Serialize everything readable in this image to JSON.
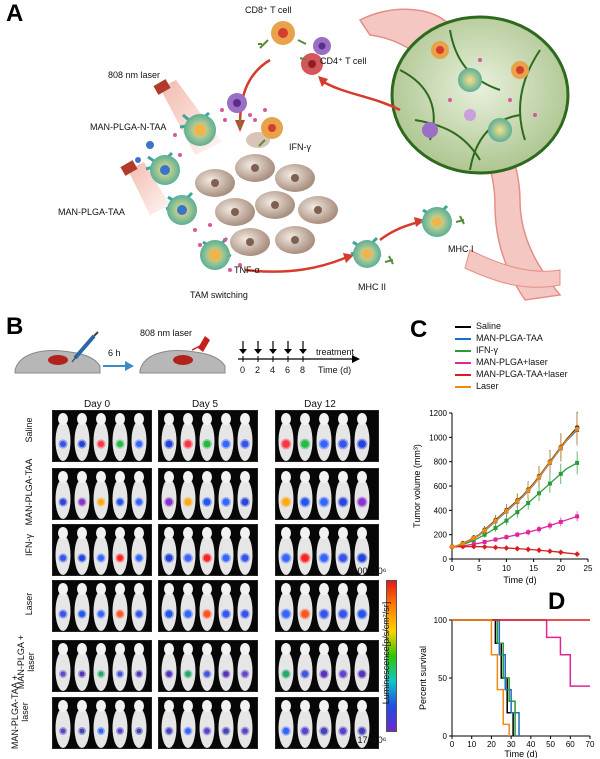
{
  "panel_a": {
    "letter": "A",
    "labels": {
      "cd8": "CD8⁺ T cell",
      "cd4": "CD4⁺ T cell",
      "laser": "808 nm laser",
      "man_plga_n_taa": "MAN-PLGA-N-TAA",
      "man_plga_taa": "MAN-PLGA-TAA",
      "ifn": "IFN-γ",
      "tnf": "TNF-α",
      "tam": "TAM switching",
      "mhc2": "MHC II",
      "mhc1": "MHC I"
    }
  },
  "panel_b": {
    "letter": "B",
    "time_label": "6 h",
    "laser_label": "808 nm laser",
    "timeline": {
      "ticks": [
        "0",
        "2",
        "4",
        "6",
        "8"
      ],
      "treatment": "treatment",
      "time_unit": "Time (d)"
    },
    "days": [
      "Day 0",
      "Day 5",
      "Day 12"
    ],
    "groups": [
      "Saline",
      "MAN-PLGA-TAA",
      "IFN-γ",
      "Laser",
      "MAN-PLGA + laser",
      "MAN-PLGA-TAA + laser"
    ],
    "colorbar": {
      "max": "6.00×10⁶",
      "min": "2.17×10⁶",
      "label": "Luminescence[p/s/cm²/sr]"
    }
  },
  "chart_data": [
    {
      "panel": "C",
      "type": "line",
      "xlabel": "Time (d)",
      "ylabel": "Tumor volume (mm³)",
      "xlim": [
        0,
        25
      ],
      "ylim": [
        0,
        1200
      ],
      "xticks": [
        0,
        5,
        10,
        15,
        20,
        25
      ],
      "yticks": [
        0,
        200,
        400,
        600,
        800,
        1000,
        1200
      ],
      "legend_position": "top-left",
      "x": [
        0,
        1,
        2,
        3,
        4,
        5,
        6,
        7,
        8,
        9,
        10,
        11,
        12,
        13,
        14,
        15,
        16,
        17,
        18,
        19,
        20,
        21,
        23
      ],
      "series": [
        {
          "name": "Saline",
          "color": "#000000",
          "values": [
            100,
            110,
            130,
            150,
            175,
            200,
            240,
            280,
            320,
            360,
            400,
            440,
            480,
            520,
            570,
            620,
            680,
            740,
            800,
            860,
            920,
            980,
            1080
          ]
        },
        {
          "name": "MAN-PLGA-TAA",
          "color": "#1b6fc2",
          "values": [
            100,
            108,
            125,
            145,
            170,
            195,
            230,
            270,
            310,
            350,
            390,
            430,
            470,
            510,
            560,
            610,
            670,
            730,
            790,
            850,
            910,
            970,
            1060
          ]
        },
        {
          "name": "IFN-γ",
          "color": "#2a9a3a",
          "values": [
            100,
            105,
            118,
            135,
            155,
            175,
            200,
            225,
            255,
            285,
            315,
            350,
            385,
            420,
            460,
            500,
            540,
            580,
            620,
            660,
            700,
            740,
            790
          ]
        },
        {
          "name": "MAN-PLGA+laser",
          "color": "#e0259a",
          "values": [
            100,
            102,
            108,
            115,
            122,
            130,
            140,
            150,
            160,
            170,
            180,
            190,
            200,
            210,
            220,
            232,
            245,
            260,
            275,
            290,
            305,
            320,
            350
          ]
        },
        {
          "name": "MAN-PLGA-TAA+laser",
          "color": "#d81f1f",
          "values": [
            100,
            101,
            102,
            103,
            102,
            101,
            100,
            98,
            95,
            92,
            90,
            88,
            85,
            82,
            79,
            76,
            72,
            68,
            64,
            60,
            55,
            50,
            40
          ]
        },
        {
          "name": "Laser",
          "color": "#f08a10",
          "values": [
            100,
            110,
            128,
            148,
            172,
            198,
            235,
            275,
            315,
            355,
            395,
            435,
            475,
            515,
            565,
            615,
            675,
            735,
            795,
            855,
            915,
            975,
            1070
          ]
        }
      ]
    },
    {
      "panel": "D",
      "type": "line",
      "xlabel": "Time (d)",
      "ylabel": "Percent survival",
      "xlim": [
        0,
        70
      ],
      "ylim": [
        0,
        100
      ],
      "xticks": [
        0,
        10,
        20,
        30,
        40,
        50,
        60,
        70
      ],
      "yticks": [
        0,
        50,
        100
      ],
      "series": [
        {
          "color": "#000000",
          "steps": [
            [
              0,
              100
            ],
            [
              22,
              100
            ],
            [
              22,
              80
            ],
            [
              25,
              80
            ],
            [
              25,
              50
            ],
            [
              28,
              50
            ],
            [
              28,
              20
            ],
            [
              31,
              20
            ],
            [
              31,
              0
            ]
          ]
        },
        {
          "color": "#1b6fc2",
          "steps": [
            [
              0,
              100
            ],
            [
              24,
              100
            ],
            [
              24,
              70
            ],
            [
              27,
              70
            ],
            [
              27,
              40
            ],
            [
              30,
              40
            ],
            [
              30,
              20
            ],
            [
              34,
              20
            ],
            [
              34,
              0
            ]
          ]
        },
        {
          "color": "#2a9a3a",
          "steps": [
            [
              0,
              100
            ],
            [
              23,
              100
            ],
            [
              23,
              80
            ],
            [
              26,
              80
            ],
            [
              26,
              50
            ],
            [
              29,
              50
            ],
            [
              29,
              30
            ],
            [
              32,
              30
            ],
            [
              32,
              0
            ]
          ]
        },
        {
          "color": "#e0259a",
          "steps": [
            [
              0,
              100
            ],
            [
              48,
              100
            ],
            [
              48,
              85
            ],
            [
              55,
              85
            ],
            [
              55,
              70
            ],
            [
              60,
              70
            ],
            [
              60,
              43
            ],
            [
              70,
              43
            ]
          ]
        },
        {
          "color": "#d81f1f",
          "steps": [
            [
              0,
              100
            ],
            [
              70,
              100
            ]
          ]
        },
        {
          "color": "#f08a10",
          "steps": [
            [
              0,
              100
            ],
            [
              20,
              100
            ],
            [
              20,
              70
            ],
            [
              23,
              70
            ],
            [
              23,
              40
            ],
            [
              26,
              40
            ],
            [
              26,
              10
            ],
            [
              29,
              10
            ],
            [
              29,
              0
            ]
          ]
        }
      ]
    }
  ]
}
